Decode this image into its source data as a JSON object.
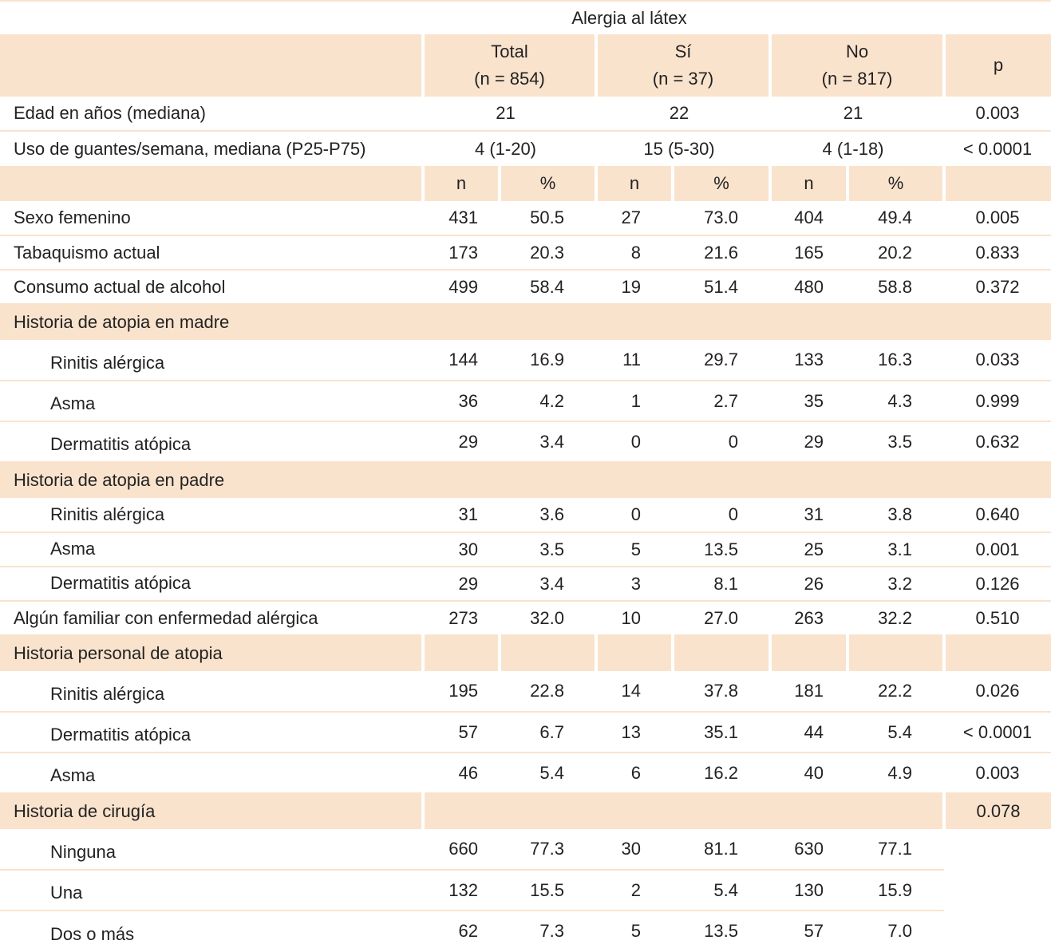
{
  "title": "Alergia al látex",
  "groups": [
    {
      "name": "Total",
      "n": "(n = 854)"
    },
    {
      "name": "Sí",
      "n": "(n = 37)"
    },
    {
      "name": "No",
      "n": "(n = 817)"
    }
  ],
  "p_label": "p",
  "n_label": "n",
  "pct_label": "%",
  "summary_rows": [
    {
      "label": "Edad en años (mediana)",
      "values": [
        "21",
        "22",
        "21",
        "0.003"
      ]
    },
    {
      "label": "Uso de guantes/semana, mediana (P25-P75)",
      "values": [
        "4 (1-20)",
        "15 (5-30)",
        "4 (1-18)",
        "< 0.0001"
      ]
    }
  ],
  "rows": [
    {
      "type": "data",
      "label": "Sexo femenino",
      "values": [
        "431",
        "50.5",
        "27",
        "73.0",
        "404",
        "49.4",
        "0.005"
      ]
    },
    {
      "type": "data",
      "label": "Tabaquismo actual",
      "values": [
        "173",
        "20.3",
        "8",
        "21.6",
        "165",
        "20.2",
        "0.833"
      ]
    },
    {
      "type": "data",
      "label": "Consumo actual de alcohol",
      "values": [
        "499",
        "58.4",
        "19",
        "51.4",
        "480",
        "58.8",
        "0.372"
      ]
    },
    {
      "type": "section",
      "style": "full",
      "label": "Historia de atopia en madre"
    },
    {
      "type": "data",
      "sub": true,
      "tall": true,
      "label": "Rinitis alérgica",
      "values": [
        "144",
        "16.9",
        "11",
        "29.7",
        "133",
        "16.3",
        "0.033"
      ]
    },
    {
      "type": "data",
      "sub": true,
      "tall": true,
      "label": "Asma",
      "values": [
        "36",
        "4.2",
        "1",
        "2.7",
        "35",
        "4.3",
        "0.999"
      ]
    },
    {
      "type": "data",
      "sub": true,
      "tall": true,
      "label": "Dermatitis atópica",
      "values": [
        "29",
        "3.4",
        "0",
        "0",
        "29",
        "3.5",
        "0.632"
      ]
    },
    {
      "type": "section",
      "style": "full",
      "label": "Historia de atopia en padre"
    },
    {
      "type": "data",
      "sub": true,
      "label": "Rinitis alérgica",
      "values": [
        "31",
        "3.6",
        "0",
        "0",
        "31",
        "3.8",
        "0.640"
      ]
    },
    {
      "type": "data",
      "sub": true,
      "label": "Asma",
      "values": [
        "30",
        "3.5",
        "5",
        "13.5",
        "25",
        "3.1",
        "0.001"
      ]
    },
    {
      "type": "data",
      "sub": true,
      "label": "Dermatitis atópica",
      "values": [
        "29",
        "3.4",
        "3",
        "8.1",
        "26",
        "3.2",
        "0.126"
      ]
    },
    {
      "type": "data",
      "label": "Algún familiar con enfermedad alérgica",
      "values": [
        "273",
        "32.0",
        "10",
        "27.0",
        "263",
        "32.2",
        "0.510"
      ]
    },
    {
      "type": "section",
      "style": "split",
      "label": "Historia personal de atopia"
    },
    {
      "type": "data",
      "sub": true,
      "tall": true,
      "label": "Rinitis alérgica",
      "values": [
        "195",
        "22.8",
        "14",
        "37.8",
        "181",
        "22.2",
        "0.026"
      ]
    },
    {
      "type": "data",
      "sub": true,
      "tall": true,
      "label": "Dermatitis atópica",
      "values": [
        "57",
        "6.7",
        "13",
        "35.1",
        "44",
        "5.4",
        "< 0.0001"
      ]
    },
    {
      "type": "data",
      "sub": true,
      "tall": true,
      "label": "Asma",
      "values": [
        "46",
        "5.4",
        "6",
        "16.2",
        "40",
        "4.9",
        "0.003"
      ]
    },
    {
      "type": "section",
      "style": "pvalue",
      "label": "Historia de cirugía",
      "p": "0.078"
    },
    {
      "type": "data",
      "sub": true,
      "tall": true,
      "nop": true,
      "label": "Ninguna",
      "values": [
        "660",
        "77.3",
        "30",
        "81.1",
        "630",
        "77.1",
        ""
      ]
    },
    {
      "type": "data",
      "sub": true,
      "tall": true,
      "nop": true,
      "label": "Una",
      "values": [
        "132",
        "15.5",
        "2",
        "5.4",
        "130",
        "15.9",
        ""
      ]
    },
    {
      "type": "data",
      "sub": true,
      "tall": true,
      "nop": true,
      "last": true,
      "label": "Dos o más",
      "values": [
        "62",
        "7.3",
        "5",
        "13.5",
        "57",
        "7.0",
        ""
      ]
    }
  ]
}
